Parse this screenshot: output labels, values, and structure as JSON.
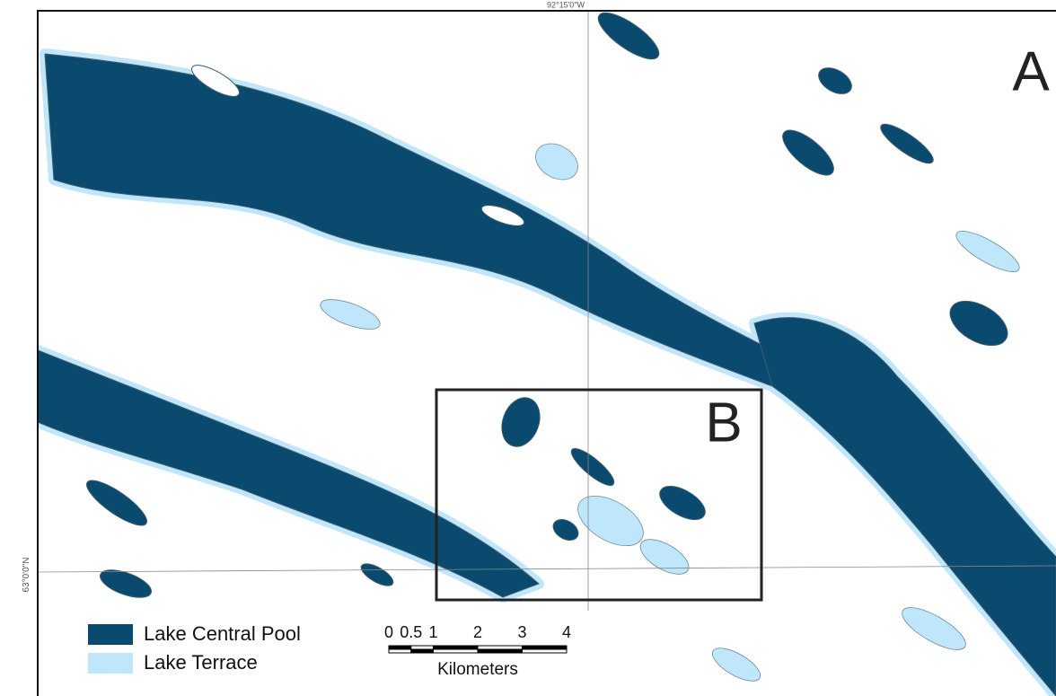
{
  "map": {
    "corner_label": "A",
    "inset_label": "B",
    "top_coordinate": "92°15'0\"W",
    "left_coordinate": "63°0'0\"N",
    "legend": [
      {
        "label": "Lake Central Pool",
        "color": "#0b4a6f"
      },
      {
        "label": "Lake Terrace",
        "color": "#bfe6fb"
      }
    ],
    "scale": {
      "labels": [
        "0",
        "0.5",
        "1",
        "2",
        "3",
        "4"
      ],
      "unit": "Kilometers"
    }
  }
}
